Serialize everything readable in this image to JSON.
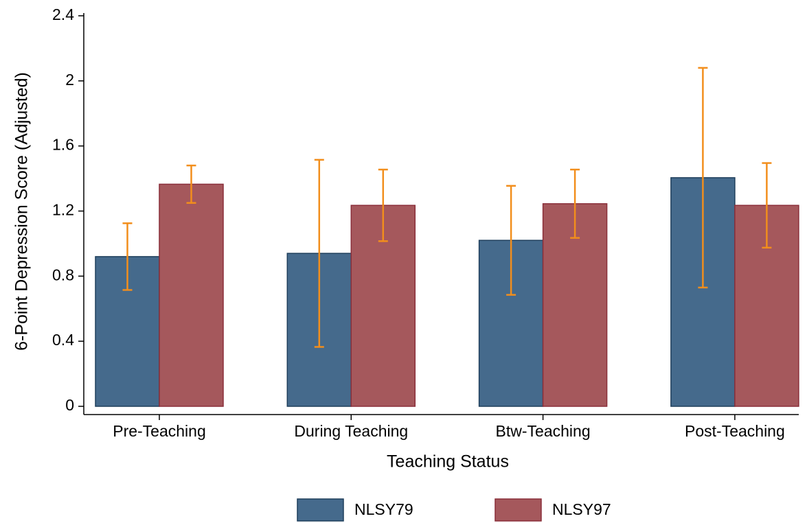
{
  "chart_data": {
    "type": "bar",
    "x_label": "Teaching Status",
    "y_label": "6-Point Depression Score (Adjusted)",
    "categories": [
      "Pre-Teaching",
      "During Teaching",
      "Btw-Teaching",
      "Post-Teaching"
    ],
    "series": [
      {
        "name": "NLSY79",
        "color": "#456a8c",
        "edge": "#1f3f5c",
        "values": [
          0.92,
          0.94,
          1.02,
          1.405
        ],
        "error": [
          0.205,
          0.575,
          0.335,
          0.675
        ]
      },
      {
        "name": "NLSY97",
        "color": "#a5585c",
        "edge": "#8a2f3a",
        "values": [
          1.365,
          1.235,
          1.245,
          1.235
        ],
        "error": [
          0.115,
          0.22,
          0.21,
          0.26
        ]
      }
    ],
    "error_color": "#f28e1c",
    "ylim": [
      0,
      2.4
    ],
    "yticks": [
      0,
      0.4,
      0.8,
      1.2,
      1.6,
      2,
      2.4
    ],
    "legend": "bottom"
  }
}
